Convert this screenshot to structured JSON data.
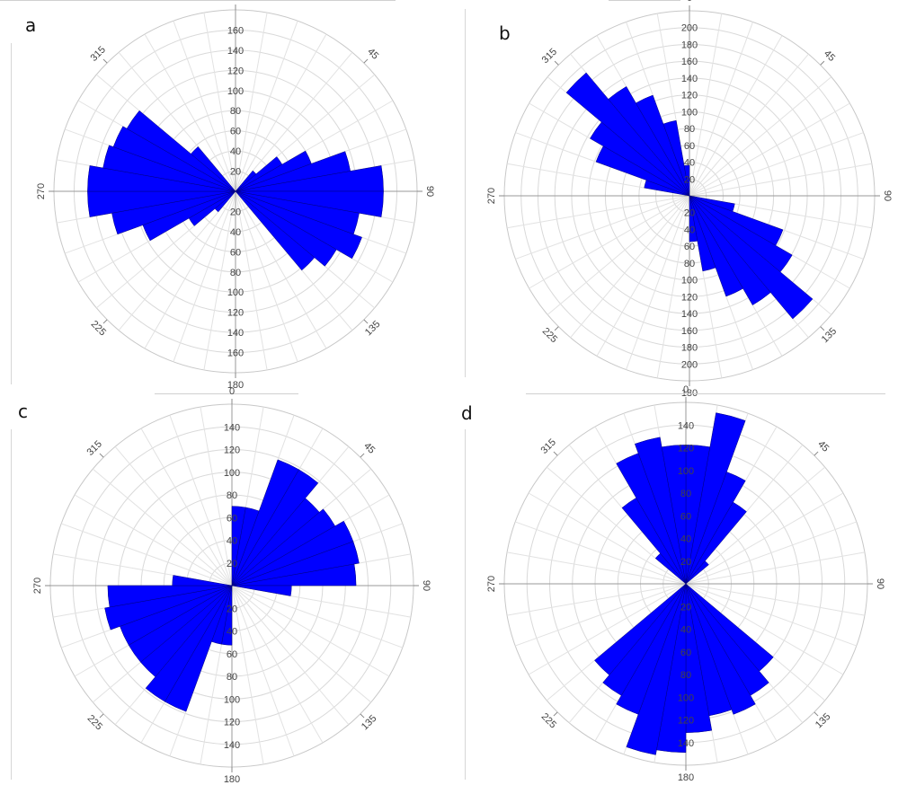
{
  "figure": {
    "panel_letters": [
      "a",
      "b",
      "c",
      "d"
    ]
  },
  "chart_data": [
    {
      "panel": "a",
      "type": "rose",
      "direction_labels": [
        "0",
        "45",
        "90",
        "135",
        "180",
        "225",
        "270",
        "315"
      ],
      "radial_tick_labels": [
        "20",
        "40",
        "60",
        "80",
        "100",
        "120",
        "140",
        "160"
      ],
      "rmax": 180,
      "bin_width_deg": 10,
      "bar_color": "#0000ff",
      "bins": [
        {
          "start": 40,
          "value": 30
        },
        {
          "start": 50,
          "value": 60
        },
        {
          "start": 60,
          "value": 90
        },
        {
          "start": 70,
          "value": 130
        },
        {
          "start": 80,
          "value": 165
        },
        {
          "start": 90,
          "value": 165
        },
        {
          "start": 100,
          "value": 140
        },
        {
          "start": 110,
          "value": 150
        },
        {
          "start": 120,
          "value": 130
        },
        {
          "start": 130,
          "value": 115
        },
        {
          "start": 220,
          "value": 30
        },
        {
          "start": 230,
          "value": 60
        },
        {
          "start": 240,
          "value": 110
        },
        {
          "start": 250,
          "value": 140
        },
        {
          "start": 260,
          "value": 165
        },
        {
          "start": 270,
          "value": 165
        },
        {
          "start": 280,
          "value": 150
        },
        {
          "start": 290,
          "value": 145
        },
        {
          "start": 300,
          "value": 140
        },
        {
          "start": 310,
          "value": 65
        }
      ]
    },
    {
      "panel": "b",
      "type": "rose",
      "direction_labels": [
        "0",
        "45",
        "90",
        "135",
        "180",
        "225",
        "270",
        "315"
      ],
      "radial_tick_labels": [
        "20",
        "40",
        "60",
        "80",
        "100",
        "120",
        "140",
        "160",
        "180",
        "200"
      ],
      "rmax": 220,
      "bin_width_deg": 10,
      "bar_color": "#0000ff",
      "bins": [
        {
          "start": 100,
          "value": 60
        },
        {
          "start": 110,
          "value": 130
        },
        {
          "start": 120,
          "value": 155
        },
        {
          "start": 130,
          "value": 210
        },
        {
          "start": 140,
          "value": 165
        },
        {
          "start": 150,
          "value": 140
        },
        {
          "start": 160,
          "value": 100
        },
        {
          "start": 170,
          "value": 60
        },
        {
          "start": 280,
          "value": 60
        },
        {
          "start": 290,
          "value": 130
        },
        {
          "start": 300,
          "value": 150
        },
        {
          "start": 310,
          "value": 210
        },
        {
          "start": 320,
          "value": 165
        },
        {
          "start": 330,
          "value": 140
        },
        {
          "start": 340,
          "value": 100
        },
        {
          "start": 350,
          "value": 40
        }
      ]
    },
    {
      "panel": "c",
      "type": "rose",
      "direction_labels": [
        "0",
        "45",
        "90",
        "135",
        "180",
        "225",
        "270",
        "315"
      ],
      "radial_tick_labels": [
        "20",
        "40",
        "60",
        "80",
        "100",
        "120",
        "140"
      ],
      "rmax": 160,
      "bin_width_deg": 10,
      "bar_color": "#0000ff",
      "bins": [
        {
          "start": 0,
          "value": 80
        },
        {
          "start": 10,
          "value": 80
        },
        {
          "start": 20,
          "value": 135
        },
        {
          "start": 30,
          "value": 135
        },
        {
          "start": 40,
          "value": 115
        },
        {
          "start": 50,
          "value": 120
        },
        {
          "start": 60,
          "value": 130
        },
        {
          "start": 70,
          "value": 130
        },
        {
          "start": 80,
          "value": 125
        },
        {
          "start": 90,
          "value": 60
        },
        {
          "start": 180,
          "value": 60
        },
        {
          "start": 190,
          "value": 60
        },
        {
          "start": 200,
          "value": 135
        },
        {
          "start": 210,
          "value": 135
        },
        {
          "start": 220,
          "value": 120
        },
        {
          "start": 230,
          "value": 120
        },
        {
          "start": 240,
          "value": 120
        },
        {
          "start": 250,
          "value": 130
        },
        {
          "start": 260,
          "value": 125
        },
        {
          "start": 270,
          "value": 60
        }
      ]
    },
    {
      "panel": "d",
      "type": "rose",
      "direction_labels": [
        "0",
        "45",
        "90",
        "135",
        "180",
        "225",
        "270",
        "315"
      ],
      "radial_tick_labels": [
        "20",
        "40",
        "60",
        "80",
        "100",
        "120",
        "140"
      ],
      "rmax": 160,
      "bin_width_deg": 10,
      "bar_color": "#0000ff",
      "bins": [
        {
          "start": 0,
          "value": 140
        },
        {
          "start": 10,
          "value": 175
        },
        {
          "start": 20,
          "value": 120
        },
        {
          "start": 30,
          "value": 95
        },
        {
          "start": 40,
          "value": 30
        },
        {
          "start": 130,
          "value": 115
        },
        {
          "start": 140,
          "value": 130
        },
        {
          "start": 150,
          "value": 140
        },
        {
          "start": 160,
          "value": 135
        },
        {
          "start": 170,
          "value": 150
        },
        {
          "start": 180,
          "value": 170
        },
        {
          "start": 190,
          "value": 175
        },
        {
          "start": 200,
          "value": 140
        },
        {
          "start": 210,
          "value": 130
        },
        {
          "start": 220,
          "value": 120
        },
        {
          "start": 310,
          "value": 40
        },
        {
          "start": 320,
          "value": 100
        },
        {
          "start": 330,
          "value": 140
        },
        {
          "start": 340,
          "value": 150
        },
        {
          "start": 350,
          "value": 140
        }
      ]
    }
  ]
}
